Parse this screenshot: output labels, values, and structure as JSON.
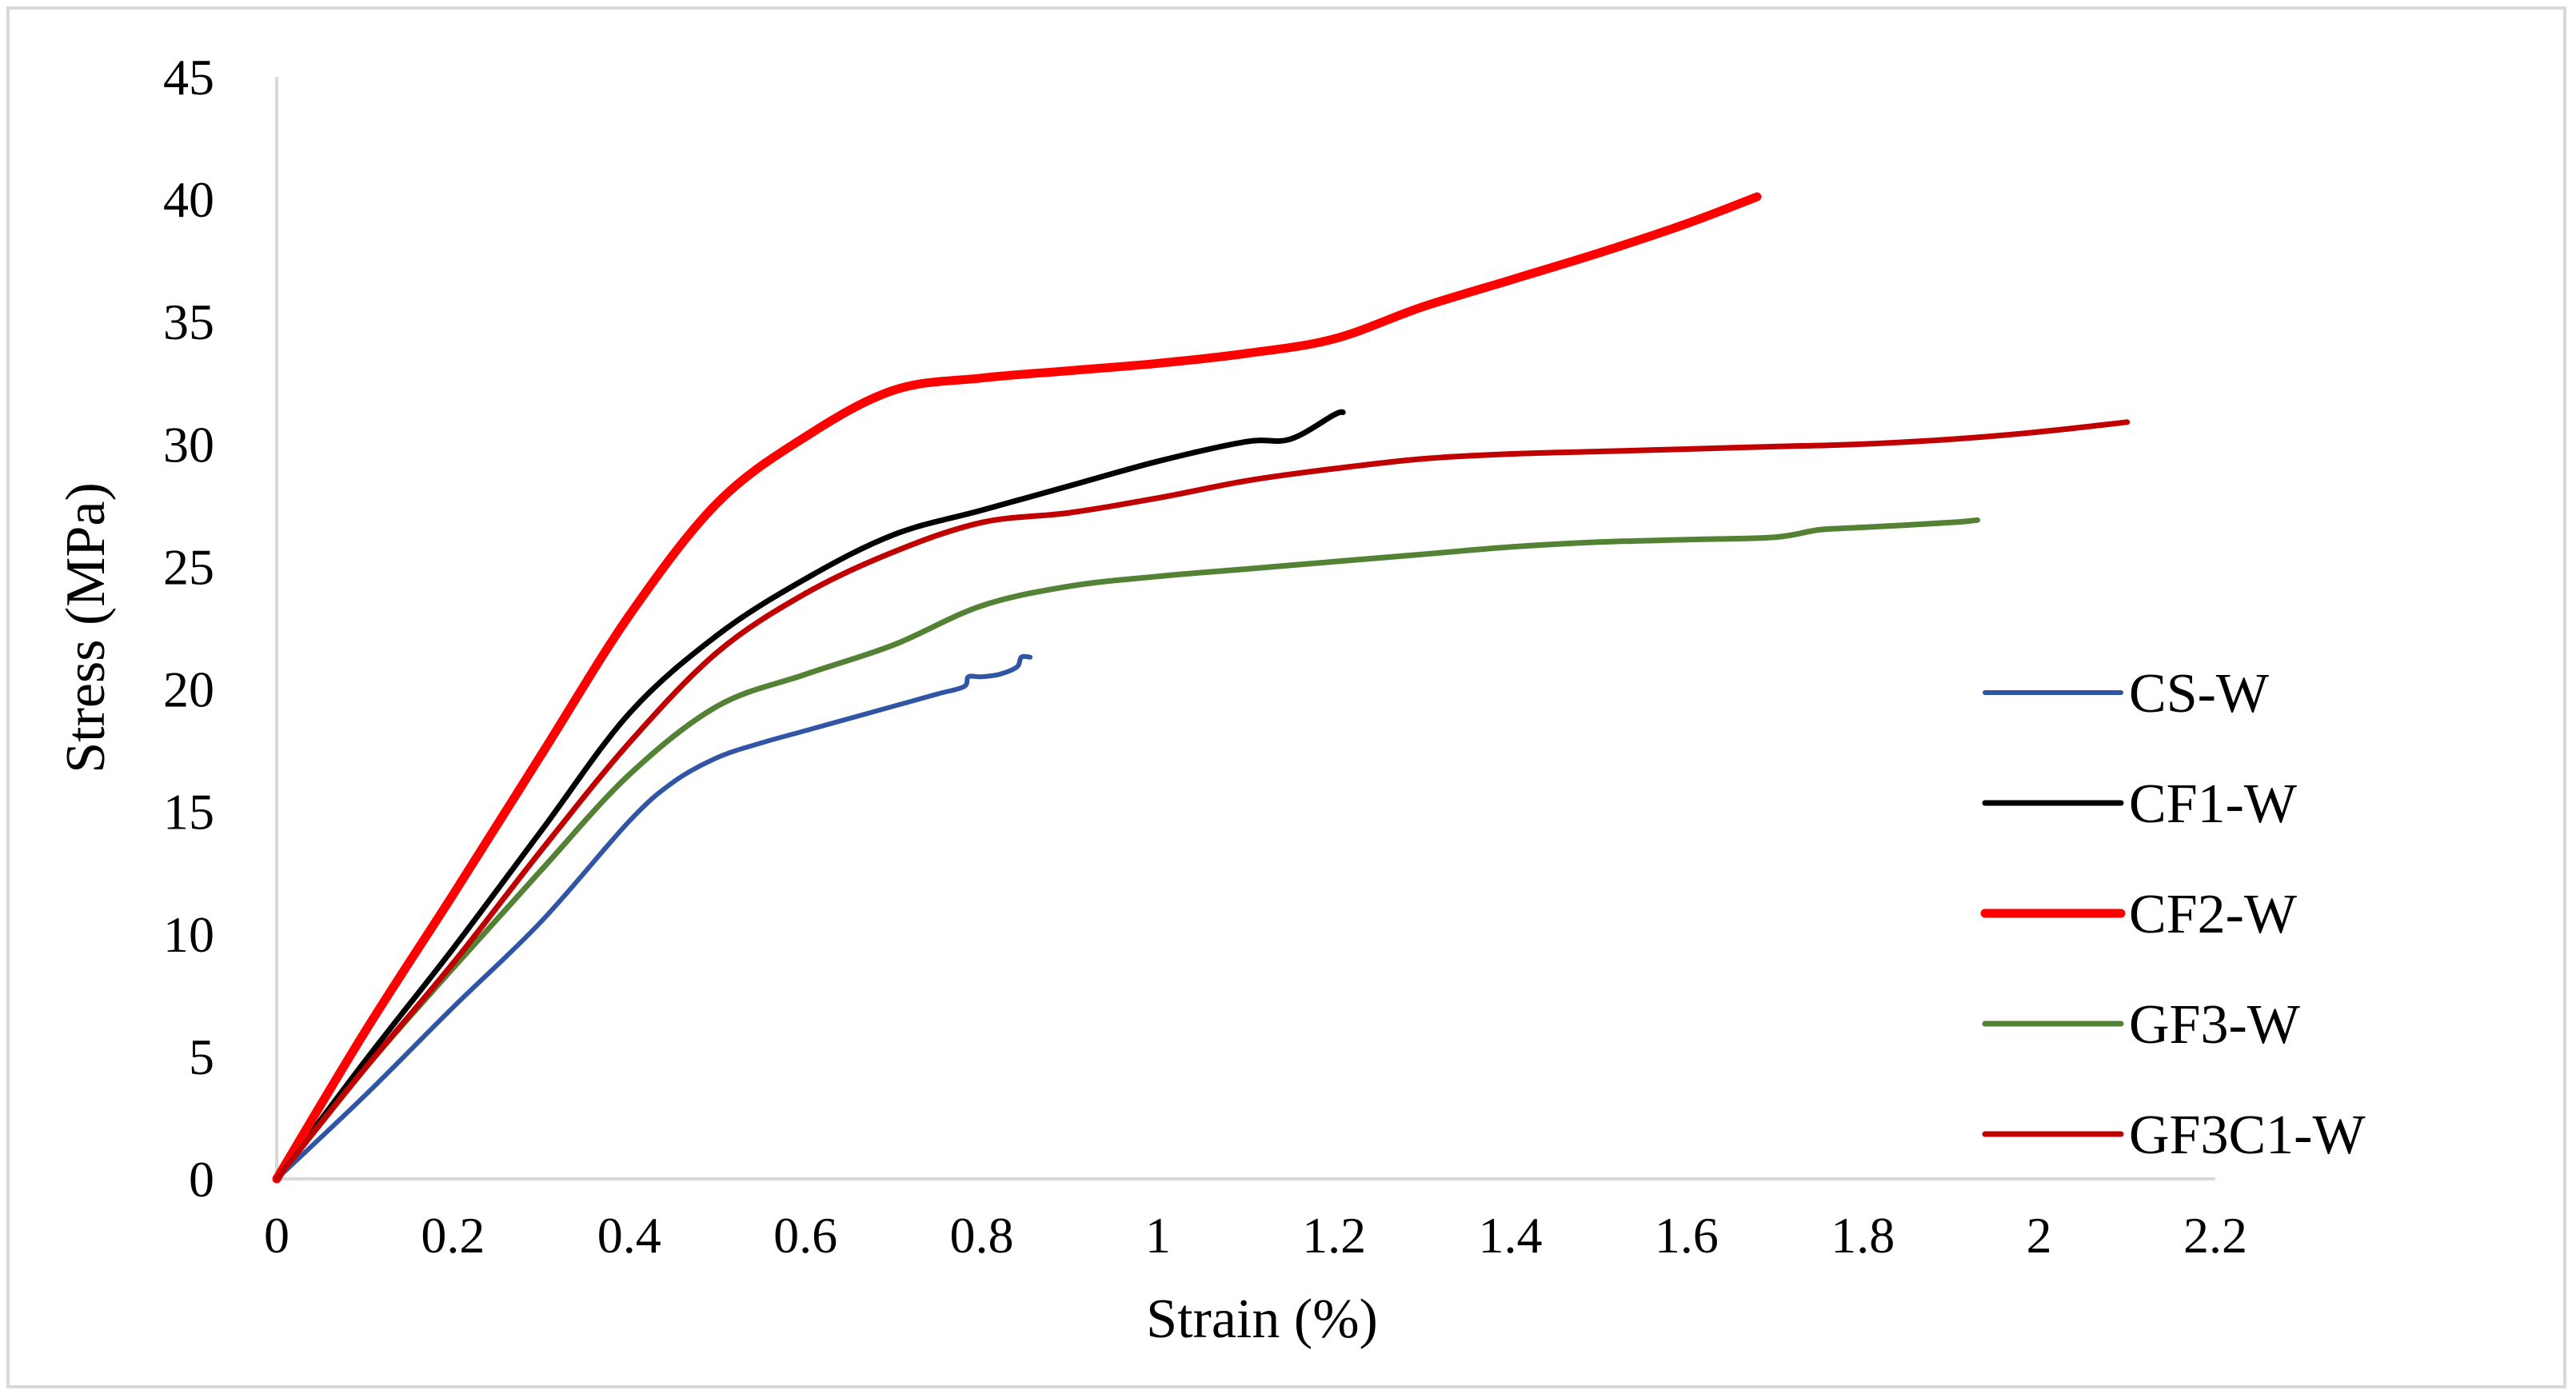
{
  "chart_data": {
    "type": "line",
    "title": "",
    "xlabel": "Strain (%)",
    "ylabel": "Stress (MPa)",
    "xlim": [
      0,
      2.2
    ],
    "ylim": [
      0,
      45
    ],
    "x_ticks": [
      0,
      0.2,
      0.4,
      0.6,
      0.8,
      1,
      1.2,
      1.4,
      1.6,
      1.8,
      2,
      2.2
    ],
    "x_tick_labels": [
      "0",
      "0.2",
      "0.4",
      "0.6",
      "0.8",
      "1",
      "1.2",
      "1.4",
      "1.6",
      "1.8",
      "2",
      "2.2"
    ],
    "y_ticks": [
      0,
      5,
      10,
      15,
      20,
      25,
      30,
      35,
      40,
      45
    ],
    "y_tick_labels": [
      "0",
      "5",
      "10",
      "15",
      "20",
      "25",
      "30",
      "35",
      "40",
      "45"
    ],
    "grid": false,
    "legend_position": "right",
    "series": [
      {
        "name": "CS-W",
        "color": "#2f55a4",
        "points": [
          [
            0,
            0
          ],
          [
            0.1,
            3.4
          ],
          [
            0.2,
            7.0
          ],
          [
            0.3,
            10.5
          ],
          [
            0.4,
            14.6
          ],
          [
            0.45,
            16.2
          ],
          [
            0.5,
            17.2
          ],
          [
            0.55,
            17.8
          ],
          [
            0.6,
            18.3
          ],
          [
            0.65,
            18.8
          ],
          [
            0.7,
            19.3
          ],
          [
            0.75,
            19.8
          ],
          [
            0.78,
            20.1
          ],
          [
            0.785,
            20.5
          ],
          [
            0.8,
            20.5
          ],
          [
            0.82,
            20.6
          ],
          [
            0.84,
            20.9
          ],
          [
            0.845,
            21.3
          ],
          [
            0.855,
            21.3
          ]
        ]
      },
      {
        "name": "CF1-W",
        "color": "#000000",
        "points": [
          [
            0,
            0
          ],
          [
            0.1,
            4.8
          ],
          [
            0.2,
            9.4
          ],
          [
            0.3,
            14.2
          ],
          [
            0.4,
            19.0
          ],
          [
            0.5,
            22.2
          ],
          [
            0.6,
            24.5
          ],
          [
            0.7,
            26.3
          ],
          [
            0.8,
            27.3
          ],
          [
            0.9,
            28.3
          ],
          [
            1.0,
            29.3
          ],
          [
            1.1,
            30.1
          ],
          [
            1.15,
            30.2
          ],
          [
            1.2,
            31.2
          ],
          [
            1.21,
            31.3
          ]
        ]
      },
      {
        "name": "CF2-W",
        "color": "#ff0000",
        "points": [
          [
            0,
            0
          ],
          [
            0.1,
            6.0
          ],
          [
            0.2,
            11.6
          ],
          [
            0.3,
            17.3
          ],
          [
            0.4,
            23.0
          ],
          [
            0.5,
            27.6
          ],
          [
            0.6,
            30.3
          ],
          [
            0.7,
            32.2
          ],
          [
            0.8,
            32.7
          ],
          [
            0.9,
            33.0
          ],
          [
            1.0,
            33.3
          ],
          [
            1.1,
            33.7
          ],
          [
            1.2,
            34.3
          ],
          [
            1.3,
            35.6
          ],
          [
            1.4,
            36.7
          ],
          [
            1.5,
            37.8
          ],
          [
            1.6,
            39.0
          ],
          [
            1.68,
            40.1
          ]
        ]
      },
      {
        "name": "GF3-W",
        "color": "#548235",
        "points": [
          [
            0,
            0
          ],
          [
            0.1,
            4.5
          ],
          [
            0.2,
            8.6
          ],
          [
            0.3,
            12.6
          ],
          [
            0.4,
            16.5
          ],
          [
            0.5,
            19.3
          ],
          [
            0.6,
            20.6
          ],
          [
            0.7,
            21.8
          ],
          [
            0.8,
            23.4
          ],
          [
            0.9,
            24.2
          ],
          [
            1.0,
            24.6
          ],
          [
            1.1,
            24.9
          ],
          [
            1.2,
            25.2
          ],
          [
            1.3,
            25.5
          ],
          [
            1.4,
            25.8
          ],
          [
            1.5,
            26.0
          ],
          [
            1.6,
            26.1
          ],
          [
            1.7,
            26.2
          ],
          [
            1.75,
            26.5
          ],
          [
            1.8,
            26.6
          ],
          [
            1.9,
            26.8
          ],
          [
            1.93,
            26.9
          ]
        ]
      },
      {
        "name": "GF3C1-W",
        "color": "#c00000",
        "points": [
          [
            0,
            0
          ],
          [
            0.1,
            4.5
          ],
          [
            0.2,
            8.8
          ],
          [
            0.3,
            13.4
          ],
          [
            0.4,
            17.8
          ],
          [
            0.5,
            21.5
          ],
          [
            0.6,
            23.9
          ],
          [
            0.7,
            25.6
          ],
          [
            0.8,
            26.8
          ],
          [
            0.9,
            27.2
          ],
          [
            1.0,
            27.8
          ],
          [
            1.1,
            28.5
          ],
          [
            1.2,
            29.0
          ],
          [
            1.3,
            29.4
          ],
          [
            1.4,
            29.6
          ],
          [
            1.5,
            29.7
          ],
          [
            1.6,
            29.8
          ],
          [
            1.7,
            29.9
          ],
          [
            1.8,
            30.0
          ],
          [
            1.9,
            30.2
          ],
          [
            2.0,
            30.5
          ],
          [
            2.1,
            30.9
          ]
        ]
      }
    ]
  }
}
